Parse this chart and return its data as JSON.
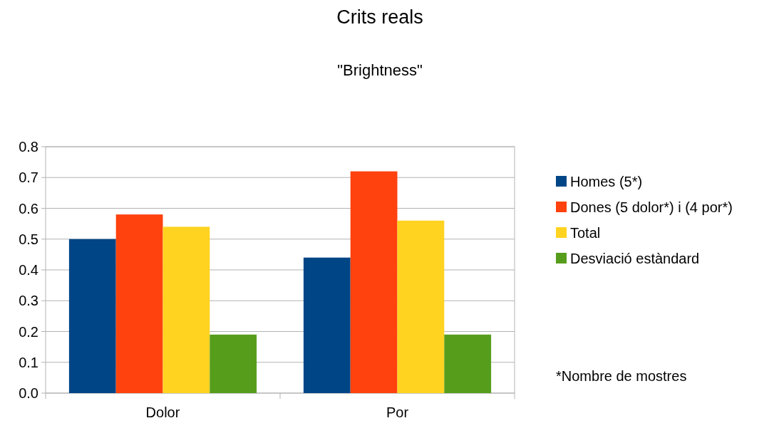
{
  "chart_data": {
    "type": "bar",
    "title": "Crits reals",
    "subtitle": "\"Brightness\"",
    "categories": [
      "Dolor",
      "Por"
    ],
    "series": [
      {
        "name": "Homes (5*)",
        "color": "#004586",
        "values": [
          0.5,
          0.44
        ]
      },
      {
        "name": "Dones (5 dolor*) i (4 por*)",
        "color": "#ff420e",
        "values": [
          0.58,
          0.72
        ]
      },
      {
        "name": "Total",
        "color": "#ffd320",
        "values": [
          0.54,
          0.56
        ]
      },
      {
        "name": "Desviació estàndard",
        "color": "#579d1c",
        "values": [
          0.19,
          0.19
        ]
      }
    ],
    "ylim": [
      0,
      0.8
    ],
    "yticks": [
      {
        "value": 0,
        "label": "0.0"
      },
      {
        "value": 0.1,
        "label": "0.1"
      },
      {
        "value": 0.2,
        "label": "0.2"
      },
      {
        "value": 0.3,
        "label": "0.3"
      },
      {
        "value": 0.4,
        "label": "0.4"
      },
      {
        "value": 0.5,
        "label": "0.5"
      },
      {
        "value": 0.6,
        "label": "0.6"
      },
      {
        "value": 0.7,
        "label": "0.7"
      },
      {
        "value": 0.8,
        "label": "0.8"
      }
    ],
    "grid": "y",
    "legend": "right",
    "annotations": [
      "*Nombre de mostres"
    ]
  }
}
